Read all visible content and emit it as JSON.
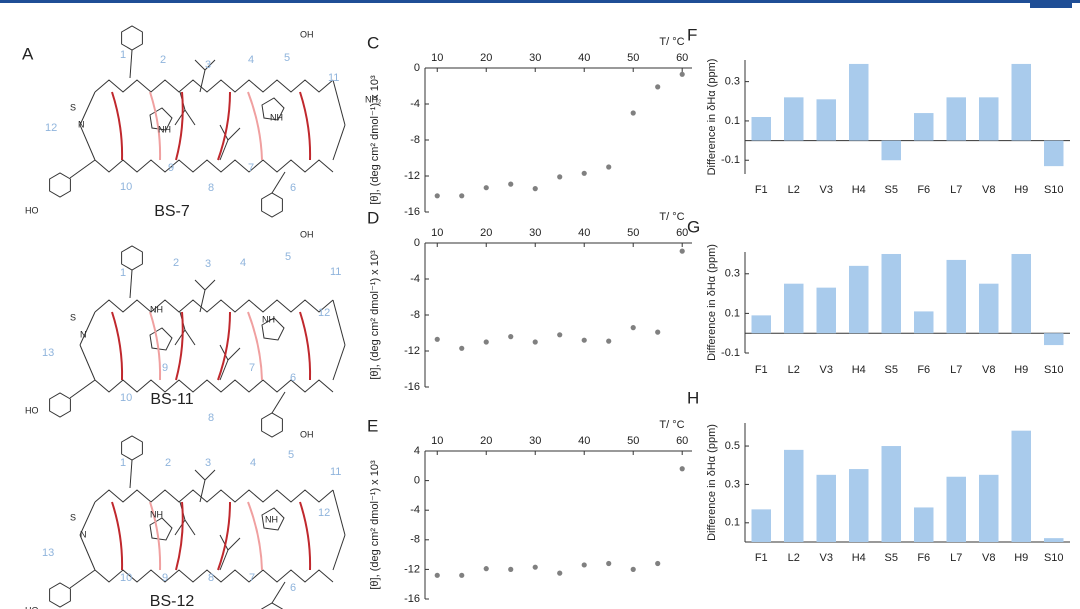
{
  "structures": [
    {
      "panel": "A",
      "name": "BS-7",
      "residues": [
        "1",
        "2",
        "3",
        "4",
        "5",
        "11",
        "12",
        "10",
        "9",
        "8",
        "7",
        "6"
      ],
      "atoms": [
        "HO",
        "NH",
        "NH",
        "NH₂",
        "OH",
        "N",
        "S"
      ]
    },
    {
      "name": "BS-11",
      "residues": [
        "1",
        "2",
        "3",
        "4",
        "5",
        "11",
        "12",
        "13",
        "10",
        "9",
        "8",
        "7",
        "6"
      ],
      "atoms": [
        "HO",
        "NH",
        "NH",
        "OH",
        "N",
        "S"
      ]
    },
    {
      "name": "BS-12",
      "residues": [
        "1",
        "2",
        "3",
        "4",
        "5",
        "11",
        "12",
        "13",
        "10",
        "9",
        "8",
        "7",
        "6"
      ],
      "atoms": [
        "HO",
        "NH",
        "NH",
        "OH",
        "N",
        "S"
      ]
    }
  ],
  "chart_data": [
    {
      "type": "scatter",
      "panel": "C",
      "xlabel": "T/ °C",
      "ylabel": "[θ], (deg cm² dmol⁻¹) x 10³",
      "color": "#808080",
      "x": [
        10,
        15,
        20,
        25,
        30,
        35,
        40,
        45,
        50,
        55,
        60
      ],
      "values": [
        -14.2,
        -14.2,
        -13.3,
        -12.9,
        -13.4,
        -12.1,
        -11.7,
        -11,
        -5,
        -2.1,
        -0.7
      ],
      "xlim": [
        7.5,
        62
      ],
      "xticks": [
        10,
        20,
        30,
        40,
        50,
        60
      ],
      "ylim": [
        -16,
        0
      ],
      "yticks": [
        -16,
        -12,
        -8,
        -4,
        0
      ]
    },
    {
      "type": "scatter",
      "panel": "D",
      "xlabel": "T/ °C",
      "ylabel": "[θ], (deg cm² dmol⁻¹) x 10³",
      "color": "#808080",
      "x": [
        10,
        15,
        20,
        25,
        30,
        35,
        40,
        45,
        50,
        55,
        60
      ],
      "values": [
        -10.7,
        -11.7,
        -11,
        -10.4,
        -11,
        -10.2,
        -10.8,
        -10.9,
        -9.4,
        -9.9,
        -0.9
      ],
      "xlim": [
        7.5,
        62
      ],
      "xticks": [
        10,
        20,
        30,
        40,
        50,
        60
      ],
      "ylim": [
        -16,
        0
      ],
      "yticks": [
        -16,
        -12,
        -8,
        -4,
        0
      ]
    },
    {
      "type": "scatter",
      "panel": "E",
      "xlabel": "T/ °C",
      "ylabel": "[θ], (deg cm² dmol⁻¹) x 10³",
      "color": "#808080",
      "x": [
        10,
        15,
        20,
        25,
        30,
        35,
        40,
        45,
        50,
        55,
        60
      ],
      "values": [
        -12.8,
        -12.8,
        -11.9,
        -12,
        -11.7,
        -12.5,
        -11.4,
        -11.2,
        -12,
        -11.2,
        1.6
      ],
      "xlim": [
        7.5,
        62
      ],
      "xticks": [
        10,
        20,
        30,
        40,
        50,
        60
      ],
      "ylim": [
        -16,
        4
      ],
      "yticks": [
        -16,
        -12,
        -8,
        -4,
        0,
        4
      ]
    },
    {
      "type": "bar",
      "panel": "F",
      "ylabel": "Difference in δHα (ppm)",
      "color": "#a9cbec",
      "categories": [
        "F1",
        "L2",
        "V3",
        "H4",
        "S5",
        "F6",
        "L7",
        "V8",
        "H9",
        "S10"
      ],
      "values": [
        0.12,
        0.22,
        0.21,
        0.39,
        -0.1,
        0.14,
        0.22,
        0.22,
        0.39,
        -0.13
      ],
      "ylim": [
        -0.17,
        0.41
      ],
      "yticks": [
        -0.1,
        0.1,
        0.3
      ]
    },
    {
      "type": "bar",
      "panel": "G",
      "ylabel": "Difference in δHα (ppm)",
      "color": "#a9cbec",
      "categories": [
        "F1",
        "L2",
        "V3",
        "H4",
        "S5",
        "F6",
        "L7",
        "V8",
        "H9",
        "S10"
      ],
      "values": [
        0.09,
        0.25,
        0.23,
        0.34,
        0.4,
        0.11,
        0.37,
        0.25,
        0.4,
        -0.06
      ],
      "ylim": [
        -0.1,
        0.41
      ],
      "yticks": [
        -0.1,
        0.1,
        0.3
      ]
    },
    {
      "type": "bar",
      "panel": "H",
      "ylabel": "Difference in δHα (ppm)",
      "color": "#a9cbec",
      "categories": [
        "F1",
        "L2",
        "V3",
        "H4",
        "S5",
        "F6",
        "L7",
        "V8",
        "H9",
        "S10"
      ],
      "values": [
        0.17,
        0.48,
        0.35,
        0.38,
        0.5,
        0.18,
        0.34,
        0.35,
        0.58,
        0.02
      ],
      "ylim": [
        0,
        0.62
      ],
      "yticks": [
        0.1,
        0.3,
        0.5
      ]
    }
  ]
}
